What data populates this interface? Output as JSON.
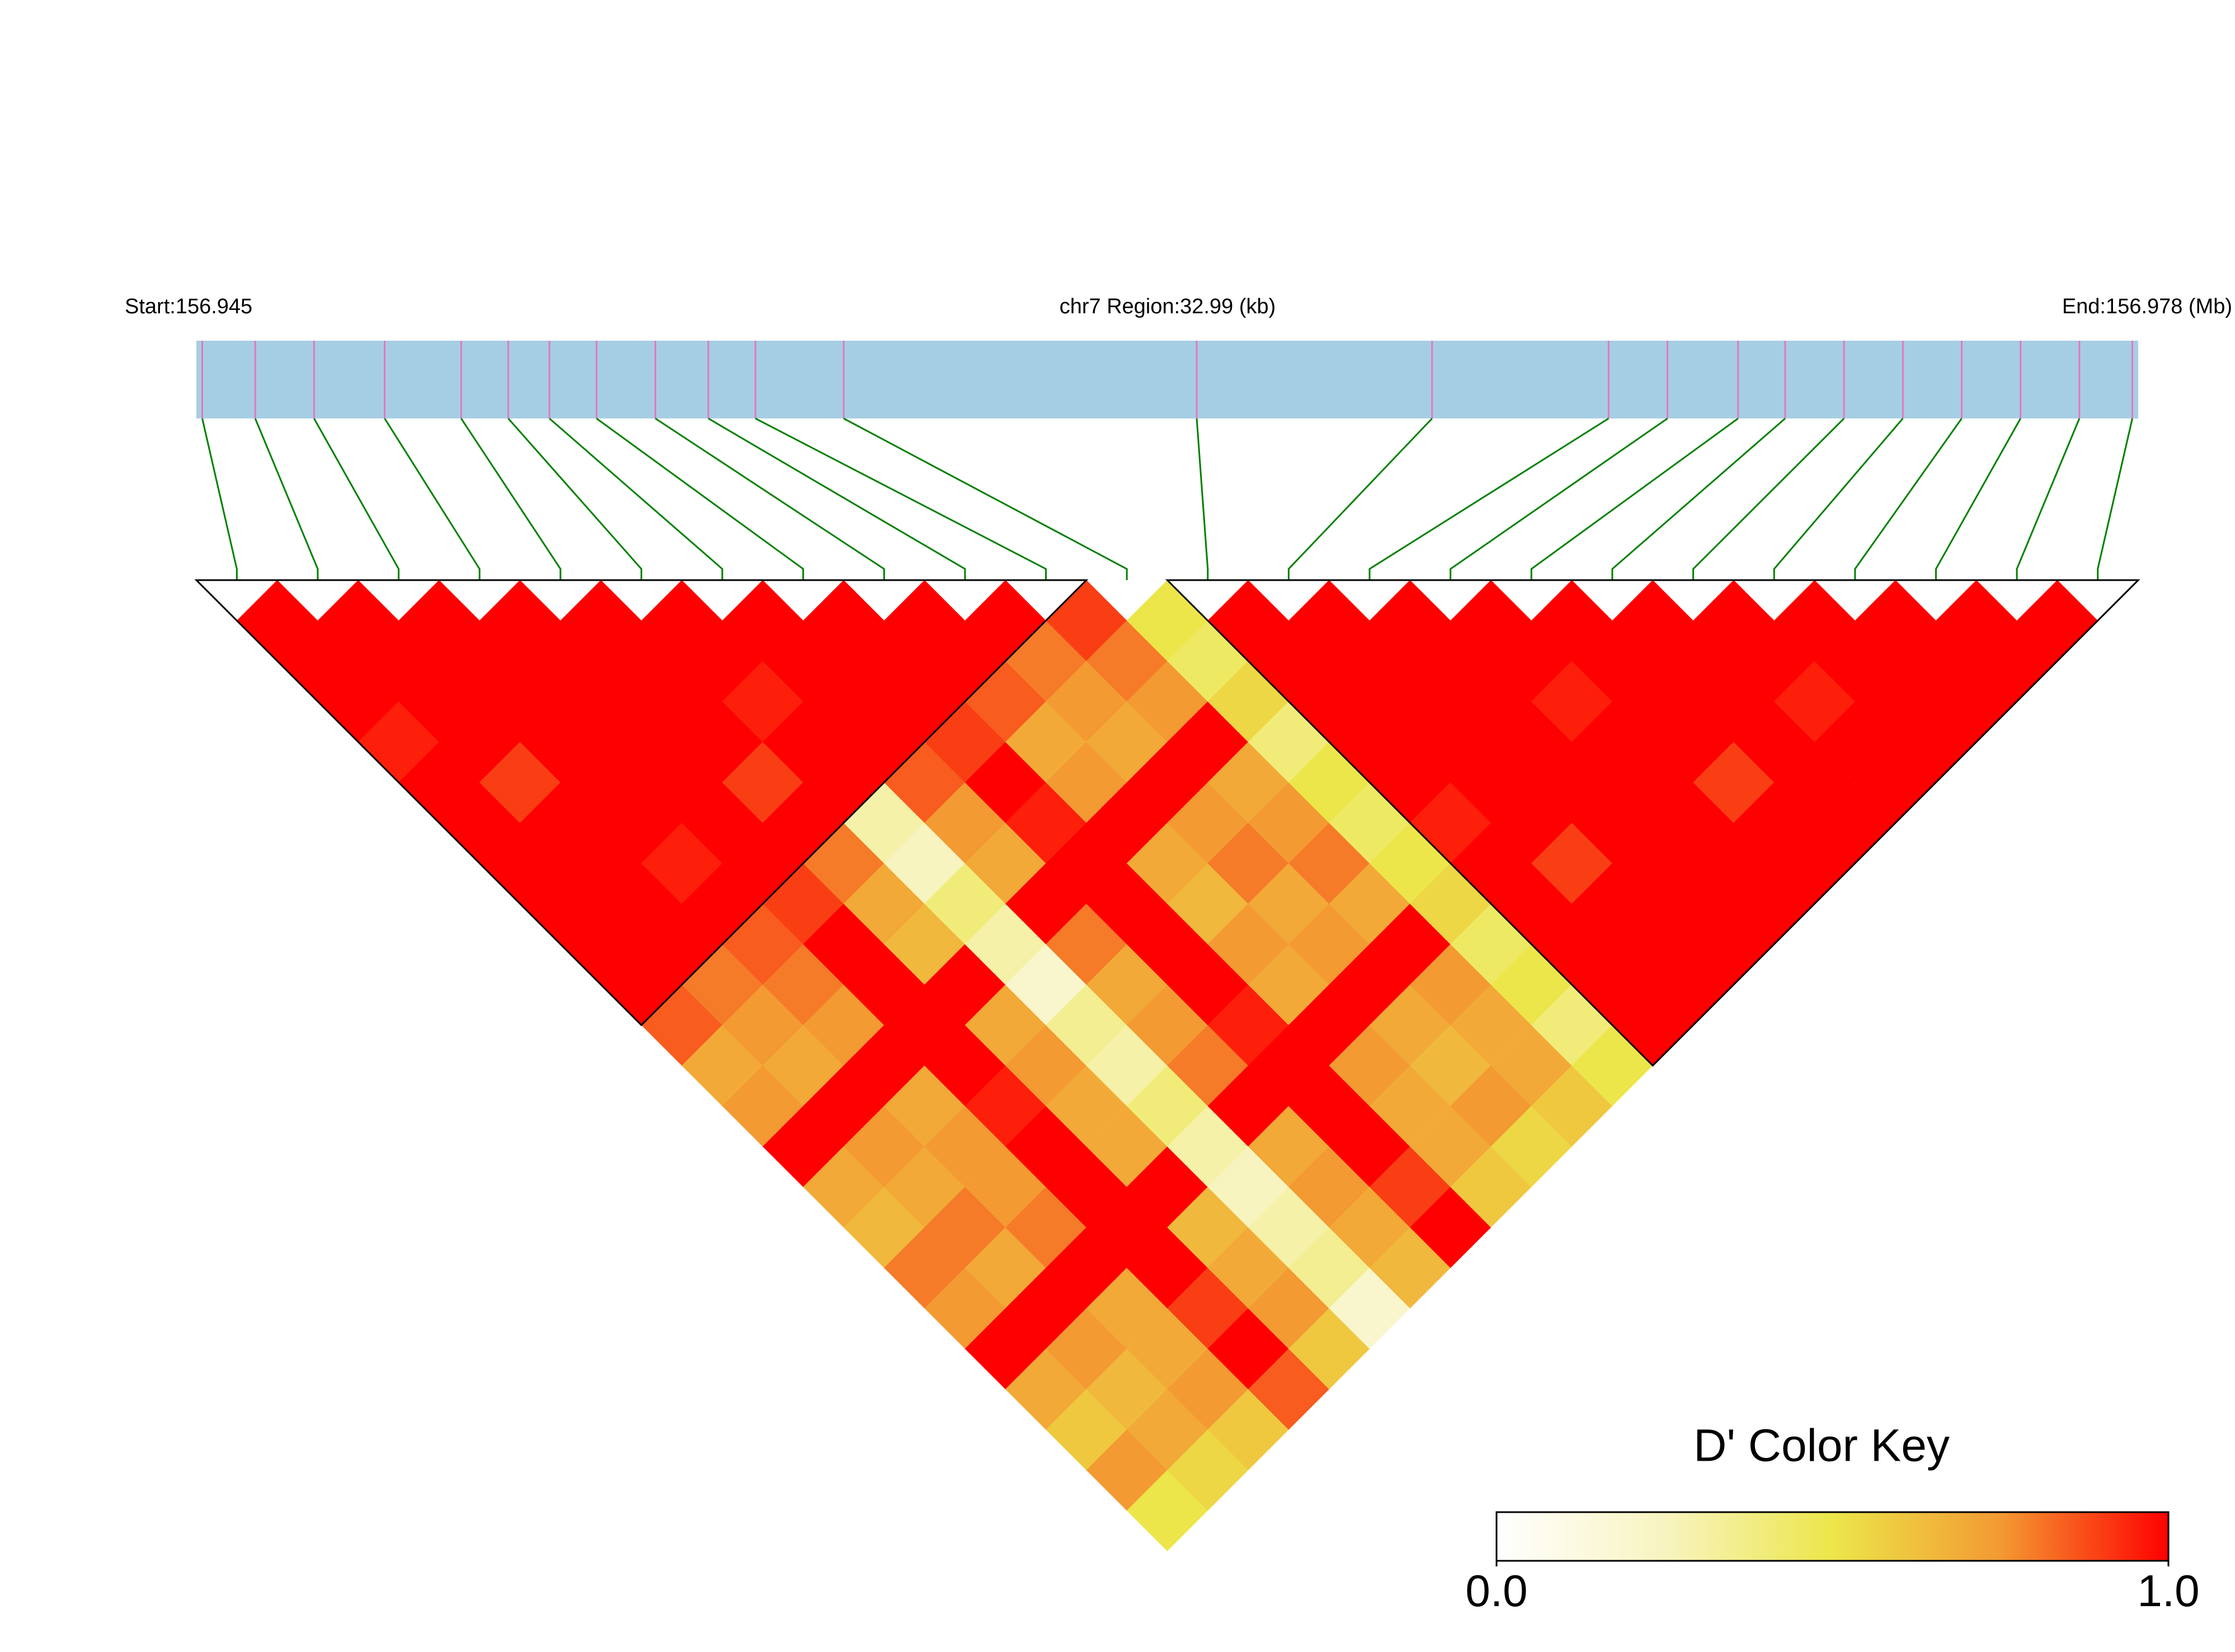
{
  "chart_data": {
    "type": "ld_heatmap",
    "start_label": "Start:156.945",
    "region_label": "chr7 Region:32.99 (kb)",
    "end_label": "End:156.978 (Mb)",
    "xlim": [
      156.945,
      156.978
    ],
    "positions": [
      156.9451,
      156.946,
      156.947,
      156.9482,
      156.9495,
      156.9503,
      156.951,
      156.9518,
      156.9528,
      156.9537,
      156.9545,
      156.956,
      156.962,
      156.966,
      156.969,
      156.97,
      156.9712,
      156.972,
      156.973,
      156.974,
      156.975,
      156.976,
      156.977,
      156.9779
    ],
    "dprime": [
      [
        1,
        1,
        1,
        0.95,
        1,
        1,
        1,
        1,
        1,
        1,
        0.85,
        0.7,
        0.75,
        1,
        0.7,
        0.65,
        0.8,
        0.75,
        1,
        0.7,
        0.6,
        0.75,
        0.5
      ],
      [
        1,
        1,
        1,
        1,
        0.9,
        1,
        1,
        1,
        1,
        0.8,
        0.75,
        0.7,
        1,
        0.75,
        0.7,
        0.8,
        0.7,
        1,
        0.75,
        0.65,
        0.7,
        0.55
      ],
      [
        1,
        1,
        1,
        1,
        1,
        1,
        0.95,
        1,
        0.85,
        0.8,
        0.75,
        1,
        0.7,
        0.75,
        0.75,
        0.8,
        1,
        0.7,
        0.7,
        0.75,
        0.6
      ],
      [
        1,
        1,
        1,
        1,
        1,
        1,
        1,
        0.9,
        1,
        1,
        1,
        1,
        0.95,
        1,
        1,
        1,
        1,
        0.9,
        1,
        0.85
      ],
      [
        1,
        1,
        1,
        1,
        0.9,
        1,
        0.8,
        0.7,
        0.65,
        1,
        0.7,
        0.75,
        0.7,
        0.7,
        1,
        0.65,
        0.7,
        0.75,
        0.6
      ],
      [
        1,
        1,
        0.95,
        1,
        1,
        0.3,
        0.25,
        0.4,
        0.3,
        0.2,
        0.35,
        0.3,
        0.4,
        0.3,
        0.25,
        0.3,
        0.35,
        0.2
      ],
      [
        1,
        1,
        1,
        1,
        0.85,
        0.75,
        0.7,
        1,
        0.8,
        0.7,
        0.75,
        0.8,
        1,
        0.7,
        0.75,
        0.7,
        0.65
      ],
      [
        1,
        1,
        1,
        0.9,
        1,
        0.95,
        1,
        1,
        1,
        1,
        0.95,
        1,
        1,
        1,
        0.9,
        1
      ],
      [
        1,
        1,
        0.85,
        0.7,
        0.75,
        1,
        0.7,
        0.65,
        0.75,
        0.7,
        1,
        0.75,
        0.7,
        0.7,
        0.6
      ],
      [
        1,
        0.8,
        0.75,
        0.7,
        1,
        0.75,
        0.8,
        0.7,
        0.75,
        1,
        0.7,
        0.65,
        0.75,
        0.55
      ],
      [
        0.9,
        0.8,
        0.75,
        1,
        0.7,
        0.75,
        0.8,
        0.7,
        1,
        0.75,
        0.7,
        0.7,
        0.6
      ],
      [
        0.5,
        0.45,
        0.55,
        0.4,
        0.5,
        0.45,
        0.5,
        0.55,
        0.45,
        0.5,
        0.4,
        0.5
      ],
      [
        1,
        1,
        1,
        1,
        1,
        0.95,
        1,
        1,
        1,
        1,
        1
      ],
      [
        1,
        1,
        1,
        1,
        1,
        1,
        0.9,
        1,
        1,
        1
      ],
      [
        1,
        1,
        1,
        1,
        1,
        1,
        1,
        1,
        1
      ],
      [
        1,
        1,
        0.95,
        1,
        1,
        1,
        1,
        1
      ],
      [
        1,
        1,
        1,
        1,
        0.9,
        1,
        1
      ],
      [
        1,
        1,
        1,
        1,
        1,
        1
      ],
      [
        1,
        1,
        0.95,
        1,
        1
      ],
      [
        1,
        1,
        1,
        1
      ],
      [
        1,
        1,
        1
      ],
      [
        1,
        1
      ],
      [
        1
      ]
    ],
    "blocks": [
      [
        0,
        10
      ],
      [
        12,
        23
      ]
    ],
    "bar_color": "#a6cee3",
    "snp_color": "#e377c2",
    "connector_color": "#008000",
    "colorscale": [
      "#ffffff",
      "#f8f4c0",
      "#ece64a",
      "#f39a32",
      "#ff0000"
    ],
    "key_title": "D' Color Key",
    "key_lim": [
      0,
      1
    ],
    "key_ticks": [
      {
        "value": 0,
        "label": "0.0"
      },
      {
        "value": 1,
        "label": "1.0"
      }
    ]
  }
}
